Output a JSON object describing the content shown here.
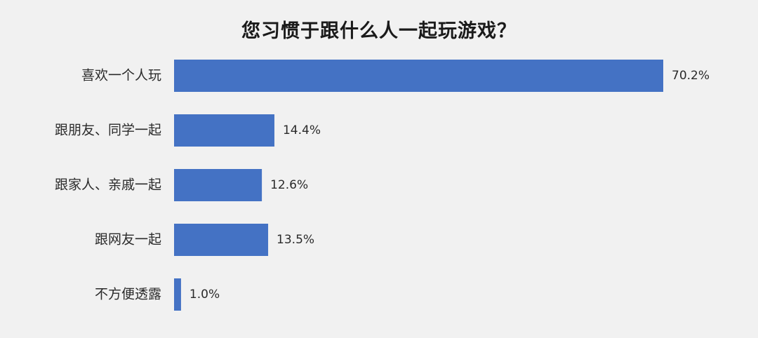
{
  "chart_data": {
    "type": "bar",
    "orientation": "horizontal",
    "title": "您习惯于跟什么人一起玩游戏？",
    "categories": [
      "喜欢一个人玩",
      "跟朋友、同学一起",
      "跟家人、亲戚一起",
      "跟网友一起",
      "不方便透露"
    ],
    "values": [
      70.2,
      14.4,
      12.6,
      13.5,
      1.0
    ],
    "value_labels": [
      "70.2%",
      "14.4%",
      "12.6%",
      "13.5%",
      "1.0%"
    ],
    "unit": "%",
    "xlim": [
      0,
      70.2
    ],
    "grid": false,
    "legend": "none",
    "bar_color": "#4472c4"
  }
}
